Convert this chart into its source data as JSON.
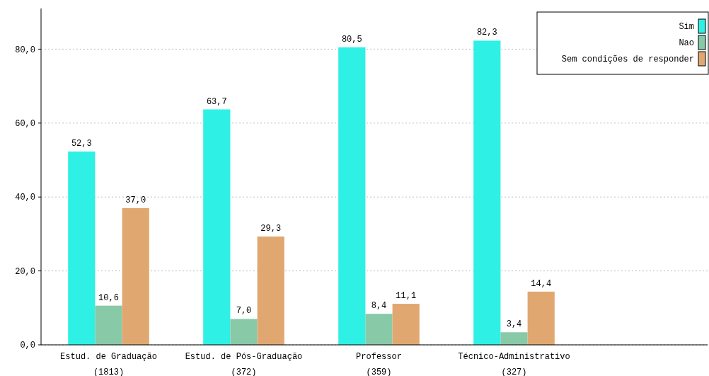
{
  "chart_data": {
    "type": "bar",
    "categories": [
      "Estud. de Graduação\n(1813)",
      "Estud. de Pós-Graduação\n(372)",
      "Professor\n(359)",
      "Técnico-Administrativo\n(327)"
    ],
    "series": [
      {
        "name": "Sim",
        "color": "#2ef0e4",
        "values": [
          52.3,
          63.7,
          80.5,
          82.3
        ],
        "value_labels": [
          "52,3",
          "63,7",
          "80,5",
          "82,3"
        ]
      },
      {
        "name": "Nao",
        "color": "#88c9a8",
        "values": [
          10.6,
          7.0,
          8.4,
          3.4
        ],
        "value_labels": [
          "10,6",
          "7,0",
          "8,4",
          "3,4"
        ]
      },
      {
        "name": "Sem condições de responder",
        "color": "#e0a870",
        "values": [
          37.0,
          29.3,
          11.1,
          14.4
        ],
        "value_labels": [
          "37,0",
          "29,3",
          "11,1",
          "14,4"
        ]
      }
    ],
    "ylim": [
      0,
      91
    ],
    "yticks": [
      {
        "value": 0,
        "label": "0,0"
      },
      {
        "value": 20,
        "label": "20,0"
      },
      {
        "value": 40,
        "label": "40,0"
      },
      {
        "value": 60,
        "label": "60,0"
      },
      {
        "value": 80,
        "label": "80,0"
      }
    ],
    "grid": "y",
    "legend": "top right"
  }
}
